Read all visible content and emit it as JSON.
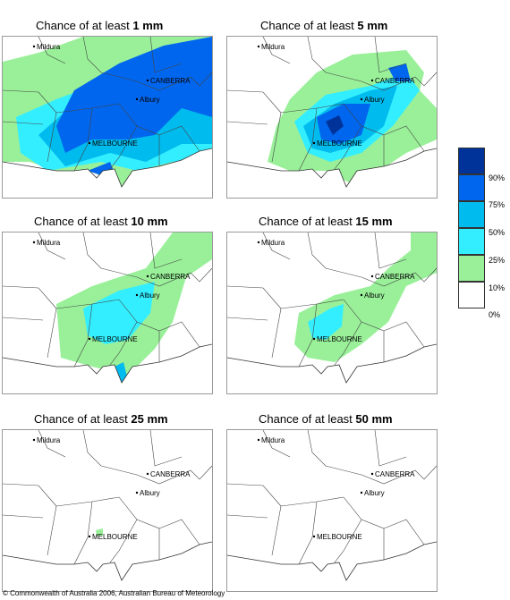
{
  "panels": [
    {
      "prefix": "Chance of at least ",
      "amount": "1 mm"
    },
    {
      "prefix": "Chance of at least ",
      "amount": "5 mm"
    },
    {
      "prefix": "Chance of at least ",
      "amount": "10 mm"
    },
    {
      "prefix": "Chance of at least ",
      "amount": "15 mm"
    },
    {
      "prefix": "Chance of at least ",
      "amount": "25 mm"
    },
    {
      "prefix": "Chance of at least ",
      "amount": "50 mm"
    }
  ],
  "cities": {
    "mildura": "Mildura",
    "canberra": "CANBERRA",
    "albury": "Albury",
    "melbourne": "MELBOURNE"
  },
  "legend": {
    "labels": [
      "90%",
      "75%",
      "50%",
      "25%",
      "10%",
      "0%"
    ],
    "colors": [
      "#003399",
      "#0066ee",
      "#00bbee",
      "#33eeff",
      "#99f099",
      "#ffffff"
    ]
  },
  "copyright": "© Commonwealth of Australia 2006, Australian Bureau of Meteorology"
}
